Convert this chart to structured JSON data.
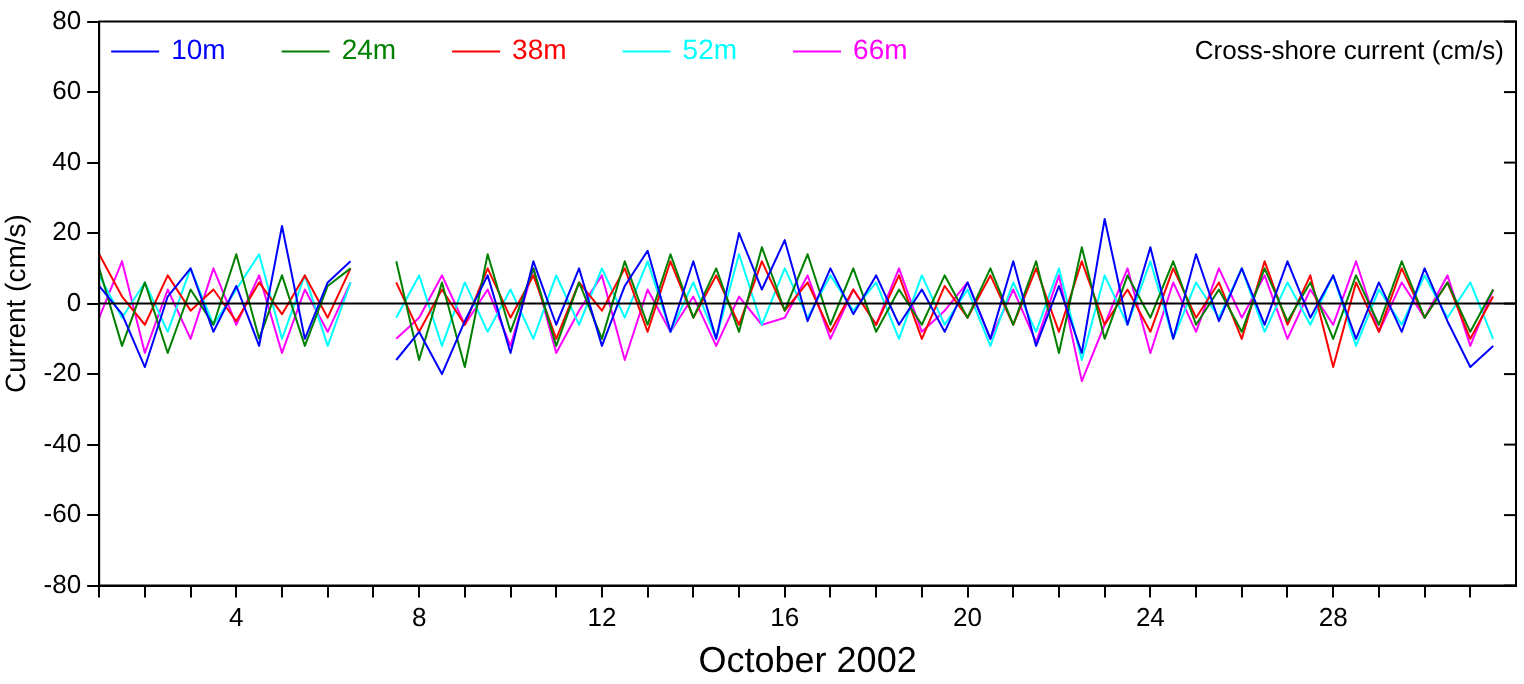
{
  "chart_data": {
    "type": "line",
    "xlabel": "October 2002",
    "ylabel": "Current (cm/s)",
    "annotations": [
      "Cross-shore current (cm/s)"
    ],
    "x": [
      1,
      1.5,
      2,
      2.5,
      3,
      3.5,
      4,
      4.5,
      5,
      5.5,
      6,
      6.5,
      7,
      7.5,
      8,
      8.5,
      9,
      9.5,
      10,
      10.5,
      11,
      11.5,
      12,
      12.5,
      13,
      13.5,
      14,
      14.5,
      15,
      15.5,
      16,
      16.5,
      17,
      17.5,
      18,
      18.5,
      19,
      19.5,
      20,
      20.5,
      21,
      21.5,
      22,
      22.5,
      23,
      23.5,
      24,
      24.5,
      25,
      25.5,
      26,
      26.5,
      27,
      27.5,
      28,
      28.5,
      29,
      29.5,
      30,
      30.5,
      31,
      31.5
    ],
    "series": [
      {
        "name": "10m",
        "color": "#0000ff",
        "values": [
          5,
          -3,
          -18,
          2,
          10,
          -8,
          5,
          -12,
          22,
          -10,
          6,
          12,
          null,
          -16,
          -8,
          -20,
          -5,
          8,
          -14,
          12,
          -6,
          10,
          -12,
          5,
          15,
          -8,
          12,
          -10,
          20,
          4,
          18,
          -5,
          10,
          -3,
          8,
          -6,
          4,
          -8,
          6,
          -10,
          12,
          -12,
          5,
          -14,
          24,
          -6,
          16,
          -10,
          14,
          -5,
          10,
          -6,
          12,
          -4,
          8,
          -10,
          6,
          -8,
          10,
          -5,
          -18,
          -12
        ]
      },
      {
        "name": "24m",
        "color": "#008000",
        "values": [
          10,
          -12,
          6,
          -14,
          4,
          -6,
          14,
          -10,
          8,
          -12,
          5,
          10,
          null,
          12,
          -16,
          6,
          -18,
          14,
          -8,
          10,
          -12,
          6,
          -10,
          12,
          -6,
          14,
          -4,
          10,
          -8,
          16,
          -2,
          14,
          -6,
          10,
          -8,
          4,
          -6,
          8,
          -4,
          10,
          -6,
          12,
          -14,
          16,
          -10,
          8,
          -4,
          12,
          -6,
          4,
          -8,
          10,
          -5,
          6,
          -10,
          8,
          -6,
          12,
          -4,
          6,
          -8,
          4
        ]
      },
      {
        "name": "38m",
        "color": "#ff0000",
        "values": [
          14,
          2,
          -6,
          8,
          -2,
          4,
          -5,
          6,
          -3,
          8,
          -4,
          10,
          null,
          6,
          -8,
          4,
          -6,
          10,
          -4,
          8,
          -10,
          6,
          -2,
          10,
          -8,
          12,
          -4,
          8,
          -6,
          12,
          -2,
          6,
          -8,
          4,
          -6,
          8,
          -10,
          5,
          -4,
          8,
          -6,
          10,
          -8,
          12,
          -6,
          4,
          -8,
          10,
          -4,
          6,
          -10,
          12,
          -6,
          8,
          -18,
          6,
          -8,
          10,
          -4,
          6,
          -10,
          2
        ]
      },
      {
        "name": "52m",
        "color": "#00ffff",
        "values": [
          8,
          -4,
          6,
          -8,
          10,
          -6,
          4,
          14,
          -10,
          8,
          -12,
          6,
          null,
          -4,
          8,
          -12,
          6,
          -8,
          4,
          -10,
          8,
          -6,
          10,
          -4,
          12,
          -8,
          6,
          -10,
          14,
          -6,
          10,
          -4,
          8,
          -2,
          6,
          -10,
          8,
          -6,
          4,
          -12,
          6,
          -8,
          10,
          -16,
          8,
          -6,
          12,
          -10,
          6,
          -4,
          10,
          -8,
          6,
          -6,
          8,
          -12,
          4,
          -6,
          8,
          -4,
          6,
          -10
        ]
      },
      {
        "name": "66m",
        "color": "#ff00ff",
        "values": [
          -4,
          12,
          -14,
          4,
          -10,
          10,
          -6,
          8,
          -14,
          4,
          -8,
          6,
          null,
          -10,
          -4,
          8,
          -6,
          4,
          -12,
          10,
          -14,
          -2,
          8,
          -16,
          4,
          -8,
          2,
          -12,
          2,
          -6,
          -4,
          8,
          -10,
          4,
          -6,
          10,
          -8,
          -2,
          6,
          -10,
          4,
          -11,
          8,
          -22,
          -6,
          10,
          -14,
          6,
          -8,
          10,
          -4,
          8,
          -10,
          4,
          -6,
          12,
          -8,
          6,
          -4,
          8,
          -12,
          4
        ]
      }
    ],
    "xlim": [
      1,
      32
    ],
    "xticks": [
      {
        "value": 1,
        "label": null
      },
      {
        "value": 2,
        "label": null
      },
      {
        "value": 3,
        "label": null
      },
      4,
      {
        "value": 5,
        "label": null
      },
      {
        "value": 6,
        "label": null
      },
      {
        "value": 7,
        "label": null
      },
      8,
      {
        "value": 9,
        "label": null
      },
      {
        "value": 10,
        "label": null
      },
      {
        "value": 11,
        "label": null
      },
      12,
      {
        "value": 13,
        "label": null
      },
      {
        "value": 14,
        "label": null
      },
      {
        "value": 15,
        "label": null
      },
      16,
      {
        "value": 17,
        "label": null
      },
      {
        "value": 18,
        "label": null
      },
      {
        "value": 19,
        "label": null
      },
      20,
      {
        "value": 21,
        "label": null
      },
      {
        "value": 22,
        "label": null
      },
      {
        "value": 23,
        "label": null
      },
      24,
      {
        "value": 25,
        "label": null
      },
      {
        "value": 26,
        "label": null
      },
      {
        "value": 27,
        "label": null
      },
      28,
      {
        "value": 29,
        "label": null
      },
      {
        "value": 30,
        "label": null
      },
      {
        "value": 31,
        "label": null
      }
    ],
    "ylim": [
      -80,
      80
    ],
    "yticks": [
      -80,
      -60,
      -40,
      -20,
      0,
      20,
      40,
      60,
      80
    ],
    "ref_lines": [
      {
        "axis": "y",
        "value": 0,
        "color": "#000000"
      }
    ],
    "grid": false,
    "legend": "top left",
    "marker": "none",
    "line_style": "solid"
  }
}
